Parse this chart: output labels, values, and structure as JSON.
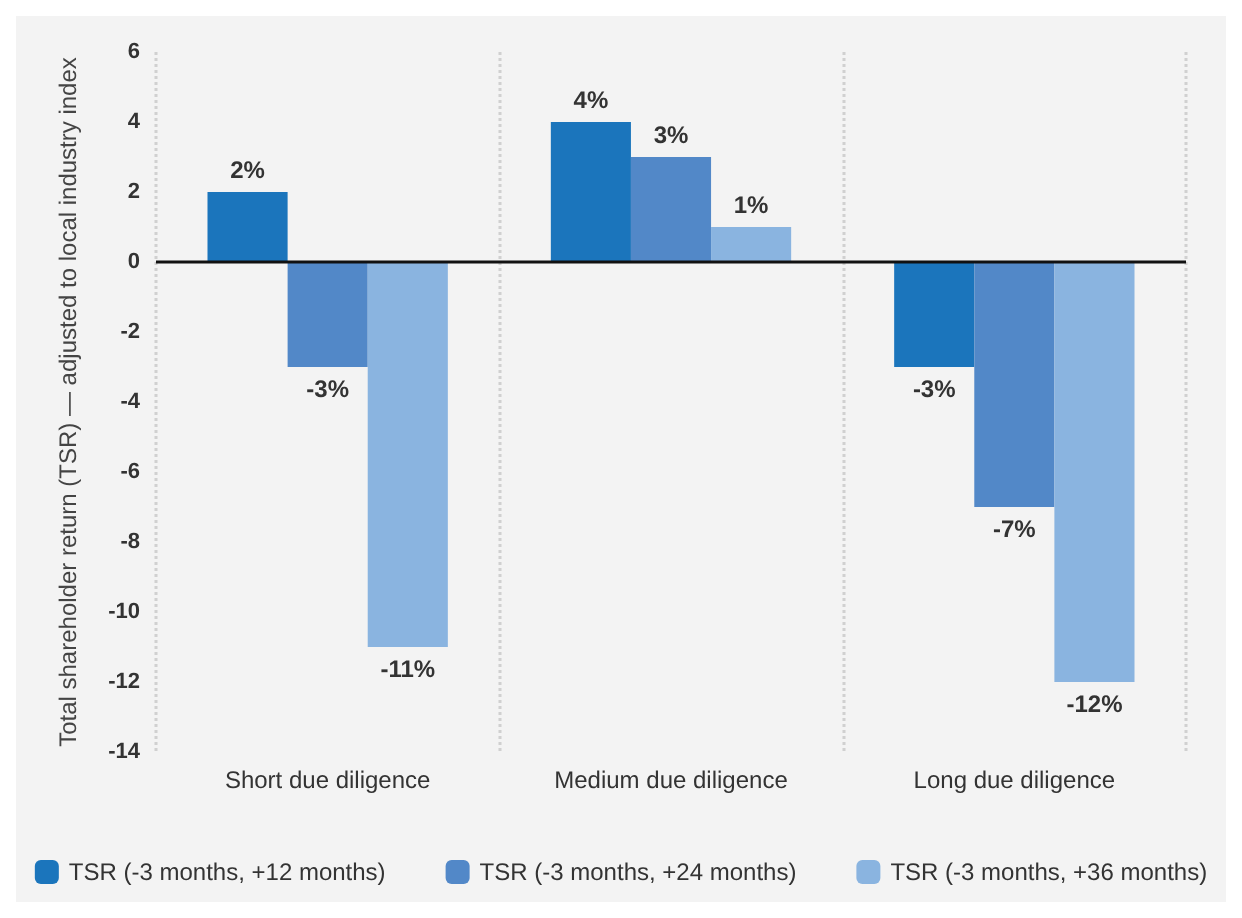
{
  "chart_data": {
    "type": "bar",
    "ylabel": "Total shareholder return (TSR) — adjusted to local industry index",
    "categories": [
      "Short due diligence",
      "Medium due diligence",
      "Long due diligence"
    ],
    "series": [
      {
        "name": "TSR (-3 months, +12 months)",
        "color": "#1b75bc",
        "values": [
          2,
          4,
          -3
        ],
        "value_labels": [
          "2%",
          "4%",
          "-3%"
        ]
      },
      {
        "name": "TSR (-3 months, +24 months)",
        "color": "#5288c8",
        "values": [
          -3,
          3,
          -7
        ],
        "value_labels": [
          "-3%",
          "3%",
          "-7%"
        ]
      },
      {
        "name": "TSR (-3 months, +36 months)",
        "color": "#8ab4e0",
        "values": [
          -11,
          1,
          -12
        ],
        "value_labels": [
          "-11%",
          "1%",
          "-12%"
        ]
      }
    ],
    "ylim": [
      -14,
      6
    ],
    "yticks": [
      -14,
      -12,
      -10,
      -8,
      -6,
      -4,
      -2,
      0,
      2,
      4,
      6
    ],
    "grid": "x",
    "legend": "bottom"
  }
}
